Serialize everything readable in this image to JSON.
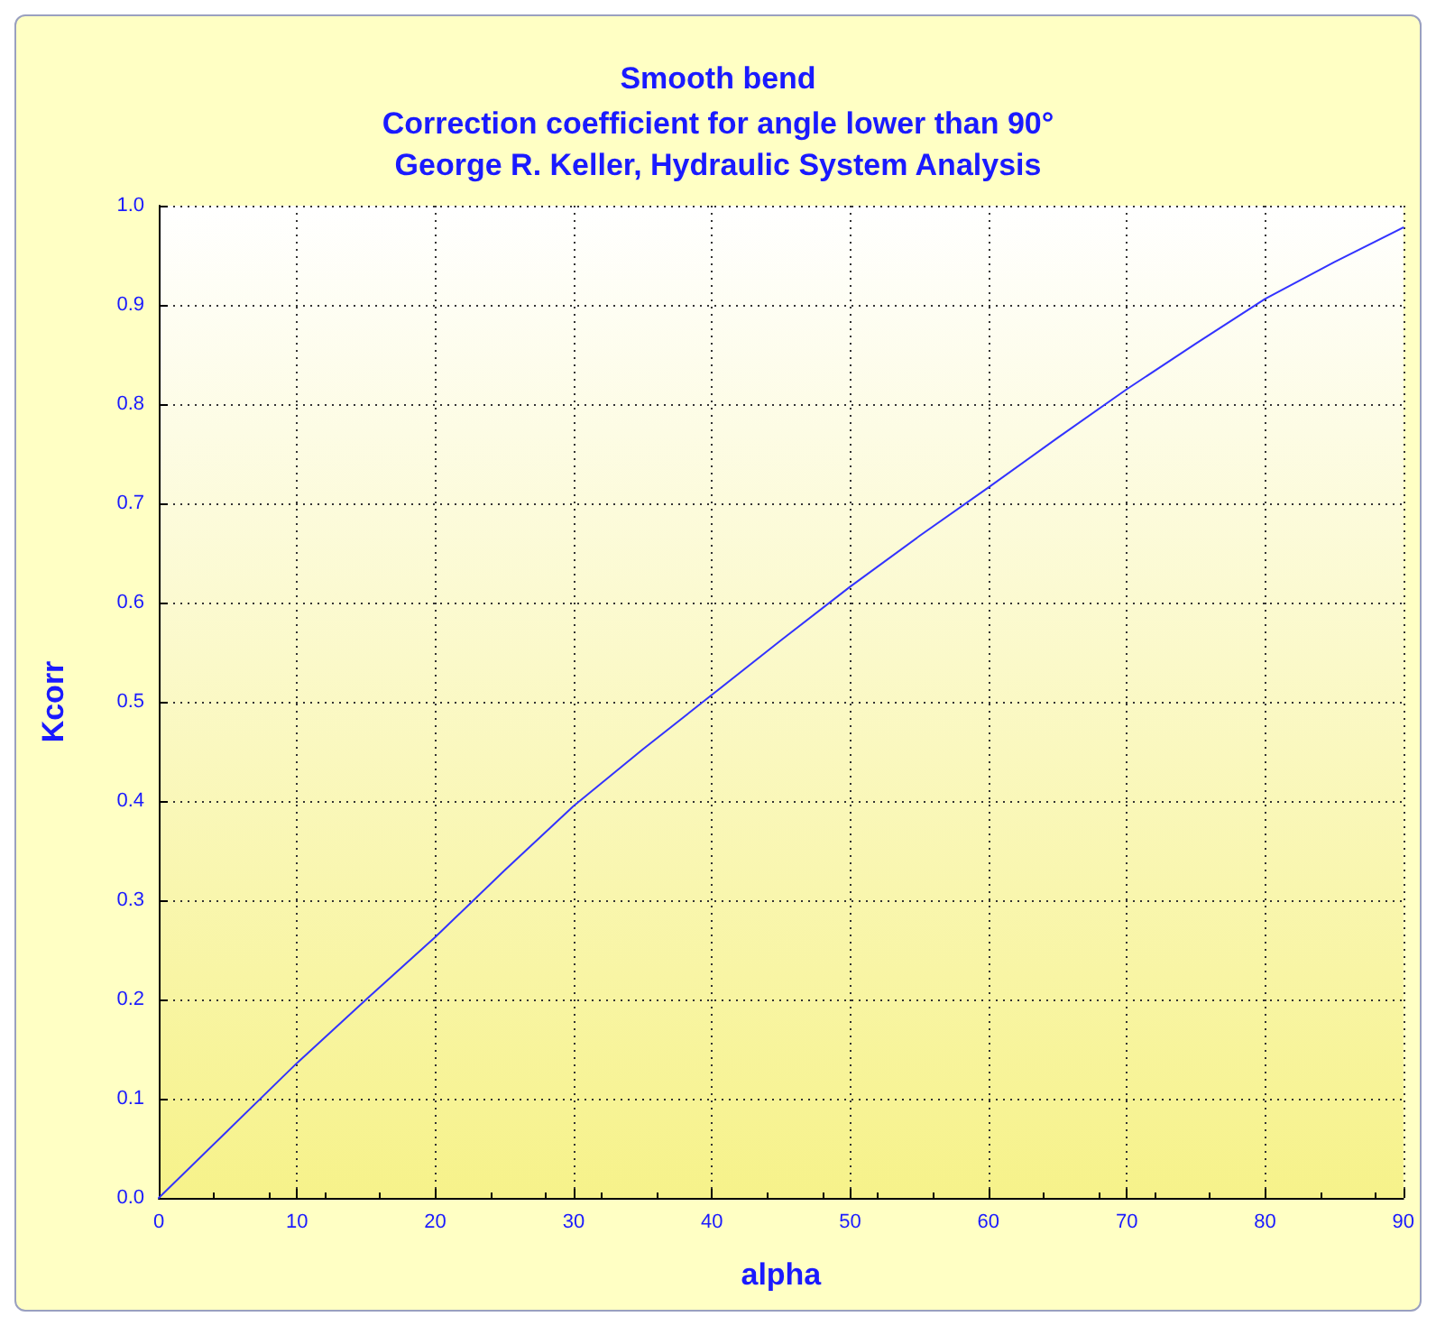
{
  "chart_data": {
    "type": "line",
    "title": "Smooth bend",
    "subtitle": "Correction coefficient for angle lower than 90°\nGeorge R. Keller, Hydraulic System Analysis",
    "xlabel": "alpha",
    "ylabel": "Kcorr",
    "x": [
      0,
      5,
      10,
      15,
      20,
      25,
      30,
      35,
      40,
      45,
      50,
      55,
      60,
      65,
      70,
      75,
      80,
      85,
      90
    ],
    "series": [
      {
        "color": "#3333ff",
        "values": [
          0,
          0.068,
          0.136,
          0.2,
          0.263,
          0.33,
          0.395,
          0.452,
          0.507,
          0.562,
          0.616,
          0.667,
          0.716,
          0.766,
          0.815,
          0.861,
          0.906,
          0.943,
          0.978
        ]
      }
    ],
    "xlim": [
      0,
      90
    ],
    "xticks": [
      0,
      10,
      20,
      30,
      40,
      50,
      60,
      70,
      80,
      90
    ],
    "ylim": [
      0,
      1
    ],
    "yticks": [
      {
        "value": 0,
        "label": "0.0"
      },
      {
        "value": 0.1,
        "label": "0.1"
      },
      {
        "value": 0.2,
        "label": "0.2"
      },
      {
        "value": 0.3,
        "label": "0.3"
      },
      {
        "value": 0.4,
        "label": "0.4"
      },
      {
        "value": 0.5,
        "label": "0.5"
      },
      {
        "value": 0.6,
        "label": "0.6"
      },
      {
        "value": 0.7,
        "label": "0.7"
      },
      {
        "value": 0.8,
        "label": "0.8"
      },
      {
        "value": 0.9,
        "label": "0.9"
      },
      {
        "value": 1,
        "label": "1.0"
      }
    ],
    "grid": true,
    "line_style": "solid",
    "marker": "none"
  }
}
